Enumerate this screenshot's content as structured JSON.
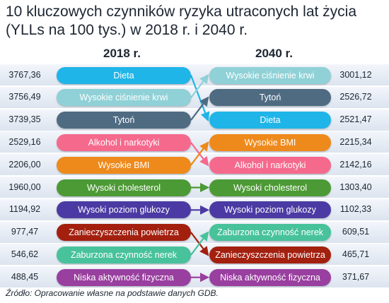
{
  "title": "10 kluczowych czynników ryzyka utraconych lat życia (YLLs na 100 tys.) w 2018 r. i 2040 r.",
  "source": "Źródło: Opracowanie własne na podstawie danych GDB.",
  "chart_data": {
    "type": "table",
    "columns": [
      "2018 r.",
      "2040 r."
    ],
    "left": [
      {
        "label": "Dieta",
        "value": "3767,36",
        "color": "#1fb5e8"
      },
      {
        "label": "Wysokie ciśnienie krwi",
        "value": "3756,49",
        "color": "#8fd1d6"
      },
      {
        "label": "Tytoń",
        "value": "3739,35",
        "color": "#4f6b82"
      },
      {
        "label": "Alkohol i narkotyki",
        "value": "2529,16",
        "color": "#f5698d"
      },
      {
        "label": "Wysokie BMI",
        "value": "2206,00",
        "color": "#ee8a1c"
      },
      {
        "label": "Wysoki cholesterol",
        "value": "1960,00",
        "color": "#4c9a35"
      },
      {
        "label": "Wysoki poziom glukozy",
        "value": "1194,92",
        "color": "#4b3aa3"
      },
      {
        "label": "Zanieczyszczenia powietrza",
        "value": "977,47",
        "color": "#a3200f"
      },
      {
        "label": "Zaburzona czynność nerek",
        "value": "546,62",
        "color": "#48c29b"
      },
      {
        "label": "Niska aktywność fizyczna",
        "value": "488,45",
        "color": "#993f9f"
      }
    ],
    "right": [
      {
        "label": "Wysokie ciśnienie krwi",
        "value": "3001,12",
        "color": "#8fd1d6"
      },
      {
        "label": "Tytoń",
        "value": "2526,72",
        "color": "#4f6b82"
      },
      {
        "label": "Dieta",
        "value": "2521,47",
        "color": "#1fb5e8"
      },
      {
        "label": "Wysokie BMI",
        "value": "2215,34",
        "color": "#ee8a1c"
      },
      {
        "label": "Alkohol i narkotyki",
        "value": "2142,16",
        "color": "#f5698d"
      },
      {
        "label": "Wysoki cholesterol",
        "value": "1303,40",
        "color": "#4c9a35"
      },
      {
        "label": "Wysoki poziom glukozy",
        "value": "1102,33",
        "color": "#4b3aa3"
      },
      {
        "label": "Zaburzona czynność nerek",
        "value": "609,51",
        "color": "#48c29b"
      },
      {
        "label": "Zanieczyszczenia powietrza",
        "value": "465,71",
        "color": "#a3200f"
      },
      {
        "label": "Niska aktywność fizyczna",
        "value": "371,67",
        "color": "#993f9f"
      }
    ]
  }
}
